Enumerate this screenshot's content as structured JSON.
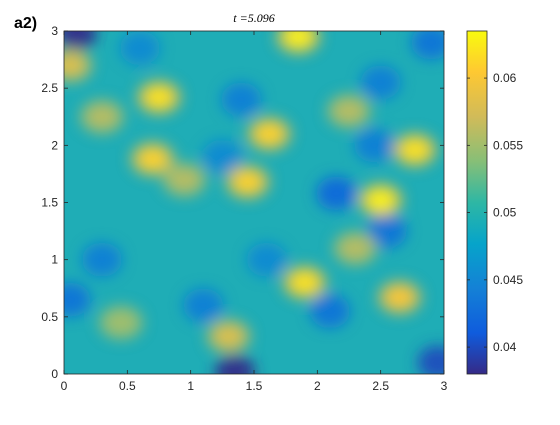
{
  "panel_label": "a2)",
  "chart_data": {
    "type": "heatmap",
    "title": "t =5.096",
    "xlabel": "",
    "ylabel": "",
    "xlim": [
      0,
      3
    ],
    "ylim": [
      0,
      3
    ],
    "xticks": [
      "0",
      "0.5",
      "1",
      "1.5",
      "2",
      "2.5",
      "3"
    ],
    "xtick_values": [
      0,
      0.5,
      1,
      1.5,
      2,
      2.5,
      3
    ],
    "yticks": [
      "0",
      "0.5",
      "1",
      "1.5",
      "2",
      "2.5",
      "3"
    ],
    "ytick_values": [
      0,
      0.5,
      1,
      1.5,
      2,
      2.5,
      3
    ],
    "colorbar": {
      "ticks": [
        "0.04",
        "0.045",
        "0.05",
        "0.055",
        "0.06"
      ],
      "tick_values": [
        0.04,
        0.045,
        0.05,
        0.055,
        0.06
      ],
      "min": 0.038,
      "max": 0.0635,
      "colormap": "parula",
      "colormap_stops": [
        "#352a87",
        "#0f5cdd",
        "#1481d6",
        "#06a4ca",
        "#2eb7a4",
        "#87bf77",
        "#d1bb59",
        "#fec832",
        "#f9fb0e"
      ]
    },
    "peaks": [
      {
        "x": 1.85,
        "y": 2.95,
        "value": 0.063
      },
      {
        "x": 0.75,
        "y": 2.42,
        "value": 0.062
      },
      {
        "x": 1.62,
        "y": 2.1,
        "value": 0.061
      },
      {
        "x": 0.7,
        "y": 1.88,
        "value": 0.061
      },
      {
        "x": 1.45,
        "y": 1.68,
        "value": 0.061
      },
      {
        "x": 2.77,
        "y": 1.96,
        "value": 0.062
      },
      {
        "x": 2.5,
        "y": 1.52,
        "value": 0.063
      },
      {
        "x": 1.9,
        "y": 0.8,
        "value": 0.062
      },
      {
        "x": 2.65,
        "y": 0.67,
        "value": 0.06
      },
      {
        "x": 1.3,
        "y": 0.33,
        "value": 0.058
      },
      {
        "x": 0.05,
        "y": 2.7,
        "value": 0.058
      },
      {
        "x": 0.3,
        "y": 2.25,
        "value": 0.056
      },
      {
        "x": 2.3,
        "y": 1.1,
        "value": 0.056
      },
      {
        "x": 0.45,
        "y": 0.45,
        "value": 0.055
      },
      {
        "x": 2.25,
        "y": 2.3,
        "value": 0.056
      },
      {
        "x": 0.95,
        "y": 1.7,
        "value": 0.056
      }
    ],
    "valleys": [
      {
        "x": 0.1,
        "y": 2.98,
        "value": 0.038
      },
      {
        "x": 1.35,
        "y": 0.02,
        "value": 0.038
      },
      {
        "x": 2.15,
        "y": 1.58,
        "value": 0.042
      },
      {
        "x": 2.55,
        "y": 1.25,
        "value": 0.043
      },
      {
        "x": 1.4,
        "y": 2.4,
        "value": 0.044
      },
      {
        "x": 2.5,
        "y": 2.55,
        "value": 0.044
      },
      {
        "x": 0.3,
        "y": 1.0,
        "value": 0.044
      },
      {
        "x": 1.1,
        "y": 0.6,
        "value": 0.044
      },
      {
        "x": 2.1,
        "y": 0.55,
        "value": 0.043
      },
      {
        "x": 2.95,
        "y": 0.1,
        "value": 0.04
      },
      {
        "x": 0.05,
        "y": 0.65,
        "value": 0.043
      },
      {
        "x": 2.45,
        "y": 2.0,
        "value": 0.044
      },
      {
        "x": 1.25,
        "y": 1.9,
        "value": 0.045
      },
      {
        "x": 0.6,
        "y": 2.85,
        "value": 0.045
      },
      {
        "x": 1.6,
        "y": 1.0,
        "value": 0.045
      },
      {
        "x": 2.9,
        "y": 2.9,
        "value": 0.043
      }
    ]
  }
}
